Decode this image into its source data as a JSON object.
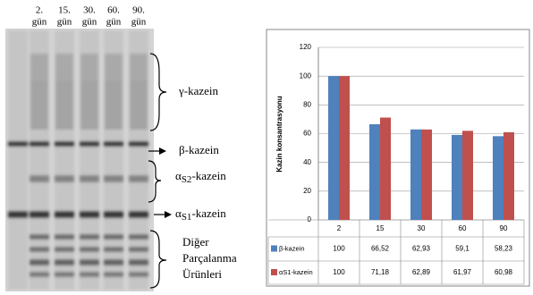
{
  "gel": {
    "lanes": [
      {
        "number": "2.",
        "unit": "gün"
      },
      {
        "number": "15.",
        "unit": "gün"
      },
      {
        "number": "30.",
        "unit": "gün"
      },
      {
        "number": "60.",
        "unit": "gün"
      },
      {
        "number": "90.",
        "unit": "gün"
      }
    ],
    "bands": {
      "gamma": "γ-kazein",
      "beta": "β-kazein",
      "alpha_s2": {
        "greek": "α",
        "sub": "S2",
        "text": "-kazein"
      },
      "alpha_s1": {
        "greek": "α",
        "sub": "S1",
        "text": "-kazein"
      },
      "other": [
        "Diğer",
        "Parçalanma",
        "Ürünleri"
      ]
    }
  },
  "chart_data": {
    "type": "bar",
    "y_label": "Kazin konsantrasyonu",
    "categories": [
      "2",
      "15",
      "30",
      "60",
      "90"
    ],
    "series": [
      {
        "name": "β-kazein",
        "color": "#4f81bd",
        "values": [
          100,
          66.52,
          62.93,
          59.1,
          58.23
        ],
        "value_labels": [
          "100",
          "66,52",
          "62,93",
          "59,1",
          "58,23"
        ]
      },
      {
        "name": "αS1-kazein",
        "color": "#c0504d",
        "values": [
          100,
          71.18,
          62.89,
          61.97,
          60.98
        ],
        "value_labels": [
          "100",
          "71,18",
          "62,89",
          "61,97",
          "60,98"
        ]
      }
    ],
    "ylim": [
      0,
      120
    ],
    "yticks": [
      0,
      20,
      40,
      60,
      80,
      100,
      120
    ],
    "grid": true
  }
}
